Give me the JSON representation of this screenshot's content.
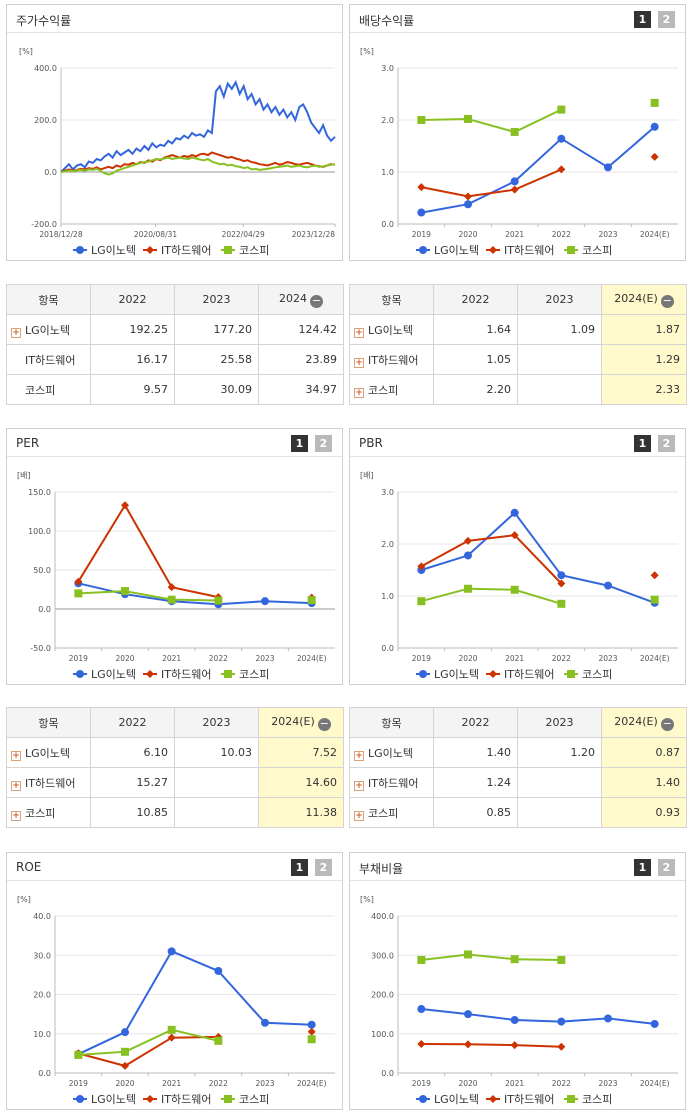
{
  "legend": [
    "LG이노텍",
    "IT하드웨어",
    "코스피"
  ],
  "colors": {
    "blue": "#3366dd",
    "red": "#cc3300",
    "green": "#88c022"
  },
  "charts": {
    "stock": {
      "title": "주가수익률",
      "unit": "[%]",
      "chart_data": {
        "type": "line",
        "ylim": [
          -200,
          400
        ],
        "yticks": [
          "400.0",
          "200.0",
          "0.0",
          "-200.0"
        ],
        "yticks_values": [
          400,
          200,
          0,
          -200
        ],
        "xticks": [
          "2018/12/28",
          "2020/08/31",
          "2022/04/29",
          "2023/12/28"
        ],
        "n_points": 70,
        "series": [
          {
            "name": "LG이노텍",
            "values": [
              0,
              15,
              30,
              10,
              25,
              30,
              18,
              40,
              35,
              50,
              45,
              60,
              70,
              55,
              80,
              65,
              75,
              85,
              70,
              90,
              80,
              100,
              85,
              110,
              95,
              105,
              100,
              120,
              110,
              130,
              125,
              140,
              130,
              150,
              140,
              145,
              135,
              160,
              150,
              310,
              330,
              290,
              340,
              320,
              345,
              300,
              330,
              280,
              300,
              260,
              280,
              240,
              260,
              230,
              250,
              220,
              240,
              210,
              230,
              200,
              250,
              260,
              230,
              190,
              170,
              150,
              180,
              140,
              120,
              135
            ]
          },
          {
            "name": "IT하드웨어",
            "values": [
              0,
              5,
              10,
              5,
              8,
              12,
              10,
              15,
              12,
              18,
              10,
              15,
              20,
              15,
              25,
              20,
              30,
              28,
              35,
              30,
              38,
              35,
              45,
              40,
              50,
              45,
              55,
              60,
              65,
              60,
              55,
              62,
              58,
              65,
              60,
              68,
              70,
              65,
              75,
              70,
              65,
              60,
              55,
              58,
              52,
              48,
              42,
              45,
              38,
              35,
              30,
              28,
              25,
              30,
              35,
              28,
              32,
              38,
              35,
              30,
              28,
              32,
              35,
              30,
              25,
              22,
              20,
              25,
              30,
              28
            ]
          },
          {
            "name": "코스피",
            "values": [
              0,
              2,
              5,
              3,
              6,
              8,
              5,
              10,
              8,
              12,
              5,
              -5,
              -10,
              -5,
              5,
              10,
              15,
              20,
              25,
              30,
              35,
              38,
              40,
              45,
              50,
              48,
              52,
              55,
              50,
              53,
              55,
              52,
              50,
              55,
              52,
              48,
              45,
              50,
              40,
              35,
              30,
              32,
              25,
              28,
              22,
              20,
              15,
              18,
              10,
              12,
              8,
              10,
              12,
              15,
              18,
              20,
              22,
              25,
              20,
              22,
              25,
              20,
              18,
              22,
              25,
              20,
              22,
              25,
              28,
              30
            ]
          }
        ]
      }
    },
    "dividend": {
      "title": "배당수익률",
      "unit": "[%]",
      "chart_data": {
        "type": "line",
        "ylim": [
          0,
          3
        ],
        "yticks": [
          "3.0",
          "2.0",
          "1.0",
          "0.0"
        ],
        "yticks_values": [
          3,
          2,
          1,
          0
        ],
        "categories": [
          "2019",
          "2020",
          "2021",
          "2022",
          "2023",
          "2024(E)"
        ],
        "series": [
          {
            "name": "LG이노텍",
            "values": [
              0.22,
              0.38,
              0.82,
              1.64,
              1.09,
              1.87
            ]
          },
          {
            "name": "IT하드웨어",
            "values": [
              0.71,
              0.53,
              0.66,
              1.05,
              null,
              1.29
            ]
          },
          {
            "name": "코스피",
            "values": [
              2.0,
              2.02,
              1.77,
              2.2,
              null,
              2.33
            ]
          }
        ]
      }
    },
    "per": {
      "title": "PER",
      "unit": "[배]",
      "chart_data": {
        "type": "line",
        "ylim": [
          -50,
          150
        ],
        "yticks": [
          "150.0",
          "100.0",
          "50.0",
          "0.0",
          "-50.0"
        ],
        "yticks_values": [
          150,
          100,
          50,
          0,
          -50
        ],
        "categories": [
          "2019",
          "2020",
          "2021",
          "2022",
          "2023",
          "2024(E)"
        ],
        "series": [
          {
            "name": "LG이노텍",
            "values": [
              33,
              19,
              10,
              6.1,
              10.03,
              7.52
            ]
          },
          {
            "name": "IT하드웨어",
            "values": [
              35,
              133,
              28,
              15.27,
              null,
              14.6
            ]
          },
          {
            "name": "코스피",
            "values": [
              20,
              23,
              12,
              10.85,
              null,
              11.38
            ]
          }
        ]
      }
    },
    "pbr": {
      "title": "PBR",
      "unit": "[배]",
      "chart_data": {
        "type": "line",
        "ylim": [
          0,
          3
        ],
        "yticks": [
          "3.0",
          "2.0",
          "1.0",
          "0.0"
        ],
        "yticks_values": [
          3,
          2,
          1,
          0
        ],
        "categories": [
          "2019",
          "2020",
          "2021",
          "2022",
          "2023",
          "2024(E)"
        ],
        "series": [
          {
            "name": "LG이노텍",
            "values": [
              1.5,
              1.78,
              2.6,
              1.4,
              1.2,
              0.87
            ]
          },
          {
            "name": "IT하드웨어",
            "values": [
              1.57,
              2.06,
              2.17,
              1.24,
              null,
              1.4
            ]
          },
          {
            "name": "코스피",
            "values": [
              0.9,
              1.14,
              1.12,
              0.85,
              null,
              0.93
            ]
          }
        ]
      }
    },
    "roe": {
      "title": "ROE",
      "unit": "[%]",
      "chart_data": {
        "type": "line",
        "ylim": [
          0,
          40
        ],
        "yticks": [
          "40.0",
          "30.0",
          "20.0",
          "10.0",
          "0.0"
        ],
        "yticks_values": [
          40,
          30,
          20,
          10,
          0
        ],
        "categories": [
          "2019",
          "2020",
          "2021",
          "2022",
          "2023",
          "2024(E)"
        ],
        "series": [
          {
            "name": "LG이노텍",
            "values": [
              4.8,
              10.4,
              31,
              26,
              12.8,
              12.3
            ]
          },
          {
            "name": "IT하드웨어",
            "values": [
              5,
              1.8,
              9,
              9.2,
              null,
              10.5
            ]
          },
          {
            "name": "코스피",
            "values": [
              4.6,
              5.4,
              11,
              8.2,
              null,
              8.6
            ]
          }
        ]
      }
    },
    "debt": {
      "title": "부채비율",
      "unit": "[%]",
      "chart_data": {
        "type": "line",
        "ylim": [
          0,
          400
        ],
        "yticks": [
          "400.0",
          "300.0",
          "200.0",
          "100.0",
          "0.0"
        ],
        "yticks_values": [
          400,
          300,
          200,
          100,
          0
        ],
        "categories": [
          "2019",
          "2020",
          "2021",
          "2022",
          "2023",
          "2024(E)"
        ],
        "series": [
          {
            "name": "LG이노텍",
            "values": [
              163,
              150,
              135,
              131,
              139,
              125
            ]
          },
          {
            "name": "IT하드웨어",
            "values": [
              74,
              73,
              71,
              67,
              null,
              null
            ]
          },
          {
            "name": "코스피",
            "values": [
              288,
              302,
              290,
              288,
              null,
              null
            ]
          }
        ]
      }
    }
  },
  "tables": {
    "stock": {
      "headers": [
        "항목",
        "2022",
        "2023",
        "2024"
      ],
      "rows": [
        {
          "name": "LG이노텍",
          "vals": [
            "192.25",
            "177.20",
            "124.42"
          ]
        },
        {
          "name": "IT하드웨어",
          "vals": [
            "16.17",
            "25.58",
            "23.89"
          ]
        },
        {
          "name": "코스피",
          "vals": [
            "9.57",
            "30.09",
            "34.97"
          ]
        }
      ]
    },
    "dividend": {
      "headers": [
        "항목",
        "2022",
        "2023",
        "2024(E)"
      ],
      "rows": [
        {
          "name": "LG이노텍",
          "vals": [
            "1.64",
            "1.09",
            "1.87"
          ]
        },
        {
          "name": "IT하드웨어",
          "vals": [
            "1.05",
            "",
            "1.29"
          ]
        },
        {
          "name": "코스피",
          "vals": [
            "2.20",
            "",
            "2.33"
          ]
        }
      ]
    },
    "per": {
      "headers": [
        "항목",
        "2022",
        "2023",
        "2024(E)"
      ],
      "rows": [
        {
          "name": "LG이노텍",
          "vals": [
            "6.10",
            "10.03",
            "7.52"
          ]
        },
        {
          "name": "IT하드웨어",
          "vals": [
            "15.27",
            "",
            "14.60"
          ]
        },
        {
          "name": "코스피",
          "vals": [
            "10.85",
            "",
            "11.38"
          ]
        }
      ]
    },
    "pbr": {
      "headers": [
        "항목",
        "2022",
        "2023",
        "2024(E)"
      ],
      "rows": [
        {
          "name": "LG이노텍",
          "vals": [
            "1.40",
            "1.20",
            "0.87"
          ]
        },
        {
          "name": "IT하드웨어",
          "vals": [
            "1.24",
            "",
            "1.40"
          ]
        },
        {
          "name": "코스피",
          "vals": [
            "0.85",
            "",
            "0.93"
          ]
        }
      ]
    }
  }
}
